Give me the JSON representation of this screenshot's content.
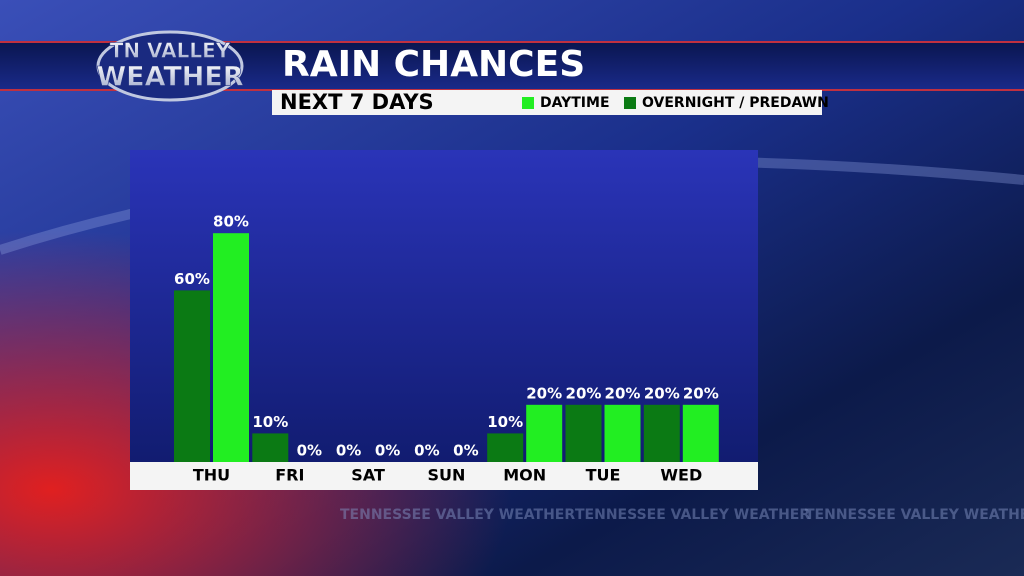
{
  "logo": {
    "line1": "TN VALLEY",
    "line2": "WEATHER"
  },
  "watermark": "TENNESSEE VALLEY WEATHER",
  "chart_data": {
    "type": "bar",
    "title": "RAIN CHANCES",
    "subtitle": "NEXT 7 DAYS",
    "categories": [
      "THU",
      "FRI",
      "SAT",
      "SUN",
      "MON",
      "TUE",
      "WED"
    ],
    "series": [
      {
        "name": "DAYTIME",
        "color": "#22ee22",
        "values": [
          80,
          0,
          0,
          0,
          20,
          20,
          20
        ],
        "value_labels": [
          "80%",
          "0%",
          "0%",
          "0%",
          "20%",
          "20%",
          "20%"
        ]
      },
      {
        "name": "OVERNIGHT / PREDAWN",
        "color": "#0b7a14",
        "values": [
          60,
          10,
          0,
          0,
          10,
          20,
          20
        ],
        "value_labels": [
          "60%",
          "10%",
          "0%",
          "0%",
          "10%",
          "20%",
          "20%"
        ]
      }
    ]
  }
}
